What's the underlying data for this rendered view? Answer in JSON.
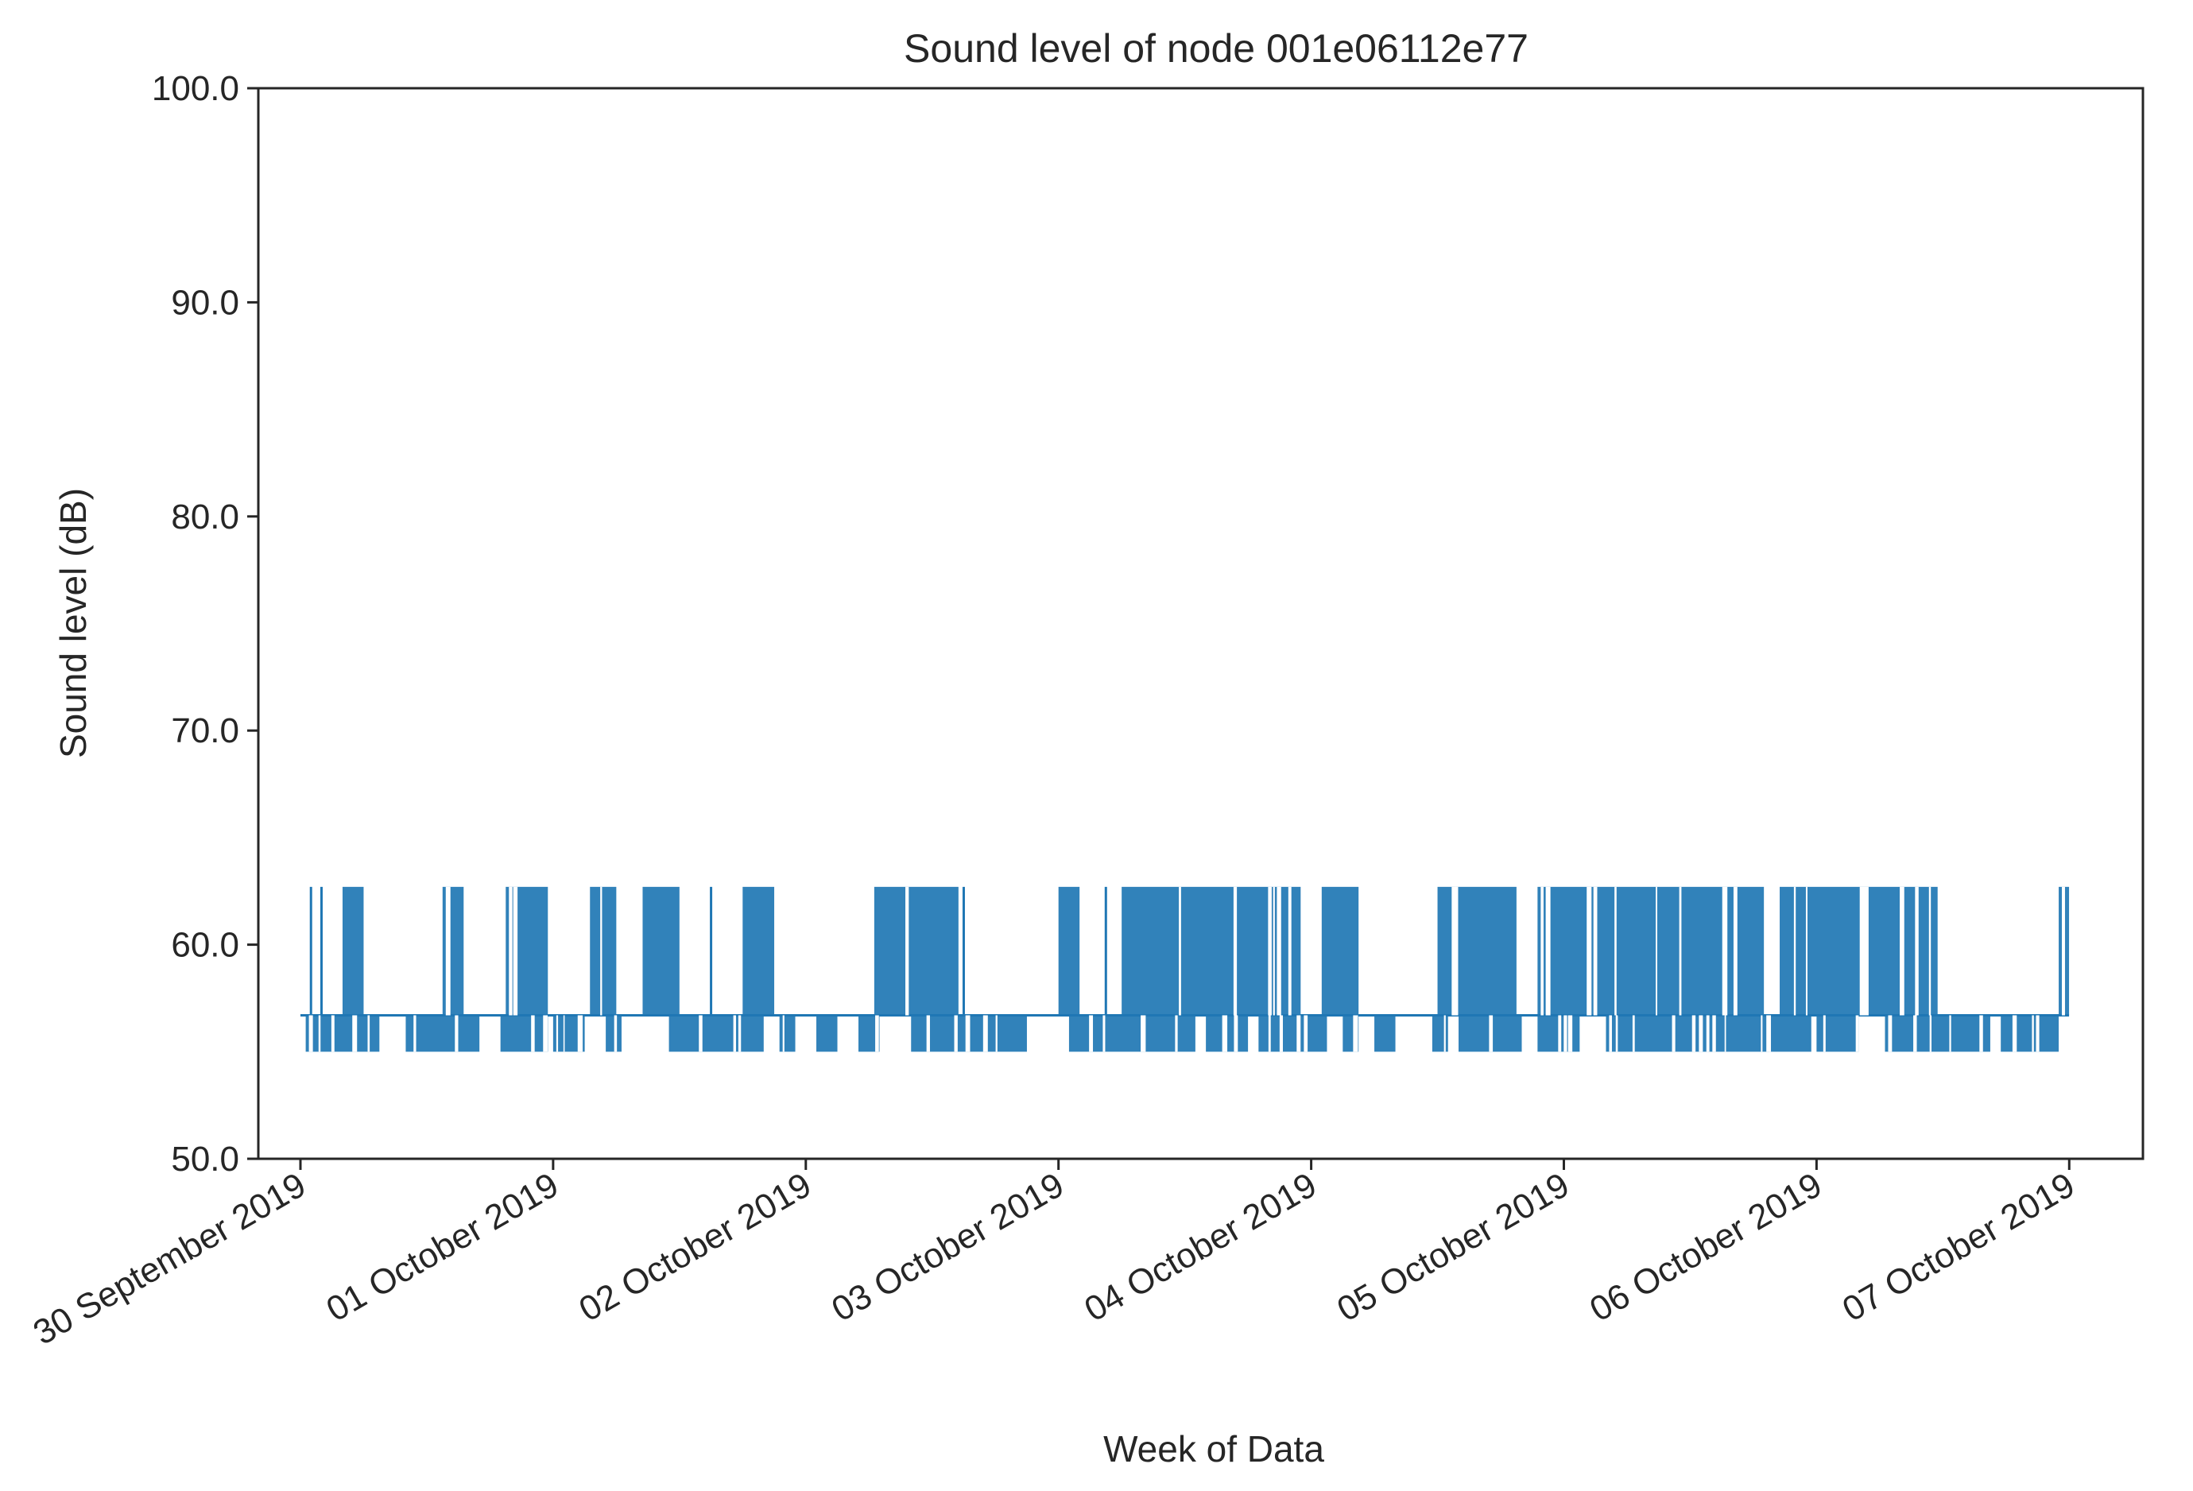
{
  "chart_data": {
    "type": "line",
    "title": "Sound level of node 001e06112e77",
    "xlabel": "Week of Data",
    "ylabel": "Sound level (dB)",
    "ylim": [
      50.0,
      100.0
    ],
    "y_ticks": [
      "50.0",
      "60.0",
      "70.0",
      "80.0",
      "90.0",
      "100.0"
    ],
    "x_range": [
      "2019-09-29 20:00",
      "2019-10-07 07:00"
    ],
    "x_ticks": [
      {
        "date": "2019-09-30",
        "label": "30 September 2019"
      },
      {
        "date": "2019-10-01",
        "label": "01 October 2019"
      },
      {
        "date": "2019-10-02",
        "label": "02 October 2019"
      },
      {
        "date": "2019-10-03",
        "label": "03 October 2019"
      },
      {
        "date": "2019-10-04",
        "label": "04 October 2019"
      },
      {
        "date": "2019-10-05",
        "label": "05 October 2019"
      },
      {
        "date": "2019-10-06",
        "label": "06 October 2019"
      },
      {
        "date": "2019-10-07",
        "label": "07 October 2019"
      }
    ],
    "grid": false,
    "series": [
      {
        "color": "#1f77b4",
        "baseline": 56.7,
        "levels": {
          "high": 62.7,
          "low": 55.0
        },
        "x_start": "2019-09-30 00:00",
        "x_end": "2019-10-06 23:59",
        "high_events": [
          {
            "from": "2019-09-30 01:00",
            "to": "2019-09-30 01:00"
          },
          {
            "from": "2019-09-30 02:00",
            "to": "2019-09-30 02:00"
          },
          {
            "from": "2019-09-30 04:00",
            "to": "2019-09-30 06:00"
          },
          {
            "from": "2019-09-30 13:30",
            "to": "2019-09-30 15:30"
          },
          {
            "from": "2019-09-30 19:30",
            "to": "2019-09-30 23:30"
          },
          {
            "from": "2019-10-01 03:30",
            "to": "2019-10-01 06:00"
          },
          {
            "from": "2019-10-01 08:30",
            "to": "2019-10-01 12:00"
          },
          {
            "from": "2019-10-01 15:00",
            "to": "2019-10-01 15:00"
          },
          {
            "from": "2019-10-01 18:00",
            "to": "2019-10-01 21:00"
          },
          {
            "from": "2019-10-02 06:30",
            "to": "2019-10-02 14:30"
          },
          {
            "from": "2019-10-02 15:00",
            "to": "2019-10-02 15:00"
          },
          {
            "from": "2019-10-03 00:00",
            "to": "2019-10-03 02:00"
          },
          {
            "from": "2019-10-03 04:30",
            "to": "2019-10-03 04:30"
          },
          {
            "from": "2019-10-03 06:00",
            "to": "2019-10-03 23:00"
          },
          {
            "from": "2019-10-04 01:00",
            "to": "2019-10-04 04:30"
          },
          {
            "from": "2019-10-04 12:00",
            "to": "2019-10-04 19:30"
          },
          {
            "from": "2019-10-04 21:30",
            "to": "2019-10-05 19:00"
          },
          {
            "from": "2019-10-05 20:30",
            "to": "2019-10-06 11:30"
          },
          {
            "from": "2019-10-06 23:00",
            "to": "2019-10-06 23:59"
          }
        ],
        "low_events": [
          {
            "from": "2019-09-30 00:30",
            "to": "2019-09-30 07:30"
          },
          {
            "from": "2019-09-30 10:00",
            "to": "2019-09-30 17:00"
          },
          {
            "from": "2019-09-30 19:00",
            "to": "2019-09-30 23:30"
          },
          {
            "from": "2019-10-01 00:00",
            "to": "2019-10-01 03:00"
          },
          {
            "from": "2019-10-01 05:00",
            "to": "2019-10-01 06:30"
          },
          {
            "from": "2019-10-01 11:00",
            "to": "2019-10-01 20:00"
          },
          {
            "from": "2019-10-01 21:30",
            "to": "2019-10-01 23:00"
          },
          {
            "from": "2019-10-02 01:00",
            "to": "2019-10-02 03:00"
          },
          {
            "from": "2019-10-02 05:00",
            "to": "2019-10-02 07:00"
          },
          {
            "from": "2019-10-02 10:00",
            "to": "2019-10-02 21:00"
          },
          {
            "from": "2019-10-03 01:00",
            "to": "2019-10-03 13:00"
          },
          {
            "from": "2019-10-03 14:00",
            "to": "2019-10-03 18:00"
          },
          {
            "from": "2019-10-03 19:00",
            "to": "2019-10-04 01:30"
          },
          {
            "from": "2019-10-04 03:00",
            "to": "2019-10-04 04:30"
          },
          {
            "from": "2019-10-04 06:00",
            "to": "2019-10-04 08:00"
          },
          {
            "from": "2019-10-04 11:30",
            "to": "2019-10-04 13:00"
          },
          {
            "from": "2019-10-04 14:00",
            "to": "2019-10-04 20:00"
          },
          {
            "from": "2019-10-04 21:30",
            "to": "2019-10-05 01:30"
          },
          {
            "from": "2019-10-05 04:00",
            "to": "2019-10-05 23:30"
          },
          {
            "from": "2019-10-06 00:00",
            "to": "2019-10-06 04:00"
          },
          {
            "from": "2019-10-06 06:30",
            "to": "2019-10-06 16:30"
          },
          {
            "from": "2019-10-06 17:30",
            "to": "2019-10-06 23:00"
          }
        ]
      }
    ]
  }
}
